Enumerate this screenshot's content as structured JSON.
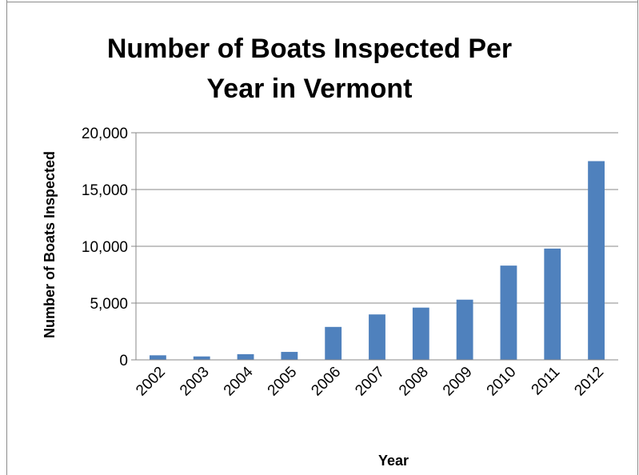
{
  "chart_data": {
    "type": "bar",
    "title_lines": [
      "Number of Boats Inspected Per",
      "Year in Vermont"
    ],
    "xlabel": "Year",
    "ylabel": "Number of Boats Inspected",
    "categories": [
      "2002",
      "2003",
      "2004",
      "2005",
      "2006",
      "2007",
      "2008",
      "2009",
      "2010",
      "2011",
      "2012"
    ],
    "values": [
      400,
      300,
      500,
      700,
      2900,
      4000,
      4600,
      5300,
      8300,
      9800,
      17500
    ],
    "ylim": [
      0,
      20000
    ],
    "yticks": [
      0,
      5000,
      10000,
      15000,
      20000
    ],
    "ytick_labels": [
      "0",
      "5,000",
      "10,000",
      "15,000",
      "20,000"
    ],
    "grid": true,
    "legend": "none",
    "colors": {
      "bar": "#4f81bd",
      "gridline": "#888888",
      "axis": "#888888",
      "frame": "#8c8c8c"
    }
  }
}
